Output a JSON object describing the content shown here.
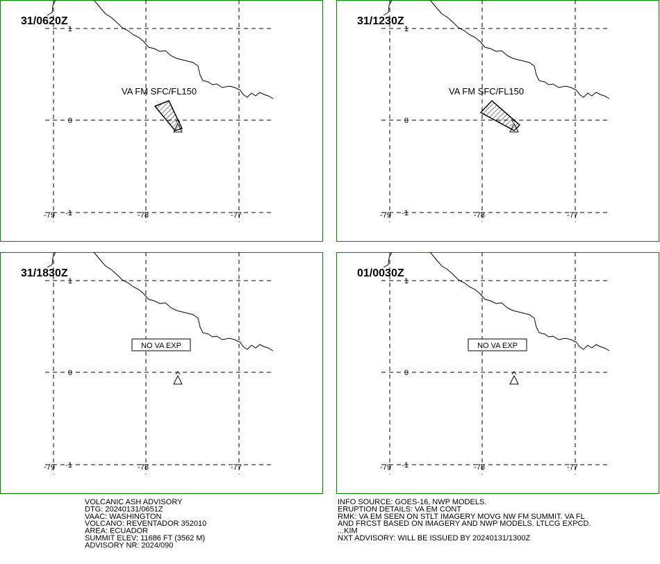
{
  "panels": [
    {
      "time": "31/0620Z",
      "label": "VA FM SFC/FL150",
      "ash": true
    },
    {
      "time": "31/1230Z",
      "label": "VA FM SFC/FL150",
      "ash": true
    },
    {
      "time": "31/1830Z",
      "label": "NO VA EXP",
      "ash": false
    },
    {
      "time": "01/0030Z",
      "label": "NO VA EXP",
      "ash": false
    }
  ],
  "grid": {
    "lon": [
      "-79",
      "-78",
      "-77"
    ],
    "lat": [
      "1",
      "0",
      "-1"
    ]
  },
  "advisory_left": [
    "VOLCANIC ASH ADVISORY",
    "DTG: 20240131/0651Z",
    "VAAC: WASHINGTON",
    "VOLCANO: REVENTADOR 352010",
    "AREA: ECUADOR",
    "SUMMIT ELEV: 11686 FT (3562 M)",
    "ADVISORY NR: 2024/090"
  ],
  "advisory_right": [
    "INFO SOURCE: GOES-16, NWP MODELS.",
    "ERUPTION DETAILS: VA EM CONT",
    "RMK: VA EM SEEN ON STLT IMAGERY MOVG NW FM SUMMIT. VA FL",
    "AND FRCST BASED ON IMAGERY AND NWP MODELS. LTLCG EXPCD.",
    "...KIM",
    "NXT ADVISORY: WILL BE ISSUED BY 20240131/1300Z"
  ]
}
